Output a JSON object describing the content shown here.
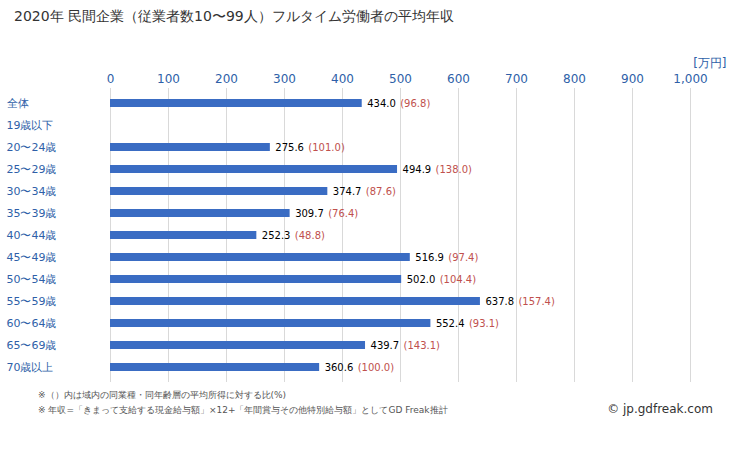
{
  "chart_data": {
    "type": "bar",
    "orientation": "horizontal",
    "title": "2020年 民間企業（従業者数10〜99人）フルタイム労働者の平均年収",
    "x_label": "[万円]",
    "categories": [
      "全体",
      "19歳以下",
      "20〜24歳",
      "25〜29歳",
      "30〜34歳",
      "35〜39歳",
      "40〜44歳",
      "45〜49歳",
      "50〜54歳",
      "55〜59歳",
      "60〜64歳",
      "65〜69歳",
      "70歳以上"
    ],
    "values": [
      434.0,
      null,
      275.6,
      494.9,
      374.7,
      309.7,
      252.3,
      516.9,
      502.0,
      637.8,
      552.4,
      439.7,
      360.6
    ],
    "value_labels": [
      "434.0",
      null,
      "275.6",
      "494.9",
      "374.7",
      "309.7",
      "252.3",
      "516.9",
      "502.0",
      "637.8",
      "552.4",
      "439.7",
      "360.6"
    ],
    "ratio_labels": [
      "(96.8)",
      null,
      "(101.0)",
      "(138.0)",
      "(87.6)",
      "(76.4)",
      "(48.8)",
      "(97.4)",
      "(104.4)",
      "(157.4)",
      "(93.1)",
      "(143.1)",
      "(100.0)"
    ],
    "ratio_color": "#c0504d",
    "color": "#3a6cc3",
    "xlim": [
      0,
      1000
    ],
    "xticks": [
      0,
      100,
      200,
      300,
      400,
      500,
      600,
      700,
      800,
      900,
      1000
    ],
    "grid": true,
    "data_labels": true,
    "notes": [
      "※（）内は域内の同業種・同年齢層の平均所得に対する比(%)",
      "※ 年収=「きまって支給する現金給与額」×12+「年間賞与その他特別給与額」としてGD Freak推計"
    ],
    "credit": "© jp.gdfreak.com"
  }
}
